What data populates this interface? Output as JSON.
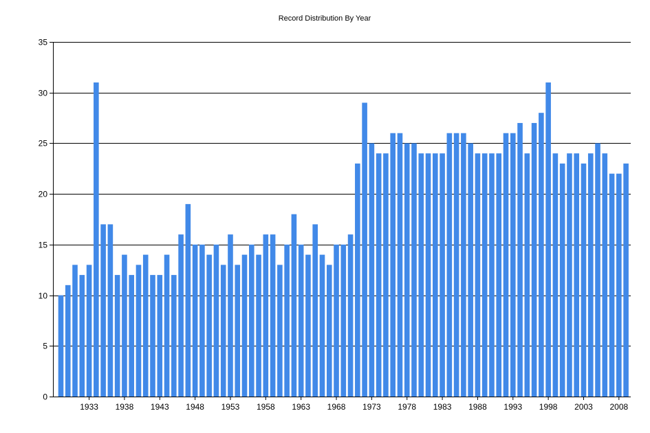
{
  "chart_data": {
    "type": "bar",
    "title": "Record Distribution By Year",
    "xlabel": "",
    "ylabel": "",
    "ylim": [
      0,
      35
    ],
    "yticks": [
      0,
      5,
      10,
      15,
      20,
      25,
      30,
      35
    ],
    "grid": true,
    "bar_color": "#4189e8",
    "categories": [
      1929,
      1930,
      1931,
      1932,
      1933,
      1934,
      1935,
      1936,
      1937,
      1938,
      1939,
      1940,
      1941,
      1942,
      1943,
      1944,
      1945,
      1946,
      1947,
      1948,
      1949,
      1950,
      1951,
      1952,
      1953,
      1954,
      1955,
      1956,
      1957,
      1958,
      1959,
      1960,
      1961,
      1962,
      1963,
      1964,
      1965,
      1966,
      1967,
      1968,
      1969,
      1970,
      1971,
      1972,
      1973,
      1974,
      1975,
      1976,
      1977,
      1978,
      1979,
      1980,
      1981,
      1982,
      1983,
      1984,
      1985,
      1986,
      1987,
      1988,
      1989,
      1990,
      1991,
      1992,
      1993,
      1994,
      1995,
      1996,
      1997,
      1998,
      1999,
      2000,
      2001,
      2002,
      2003,
      2004,
      2005,
      2006,
      2007,
      2008,
      2009
    ],
    "values": [
      10,
      11,
      13,
      12,
      13,
      31,
      17,
      17,
      12,
      14,
      12,
      13,
      14,
      12,
      12,
      14,
      12,
      16,
      19,
      15,
      15,
      14,
      15,
      13,
      16,
      13,
      14,
      15,
      14,
      16,
      16,
      13,
      15,
      18,
      15,
      14,
      17,
      14,
      13,
      15,
      15,
      16,
      23,
      29,
      25,
      24,
      24,
      26,
      26,
      25,
      25,
      24,
      24,
      24,
      24,
      26,
      26,
      26,
      25,
      24,
      24,
      24,
      24,
      26,
      26,
      27,
      24,
      27,
      28,
      31,
      24,
      23,
      24,
      24,
      23,
      24,
      25,
      24,
      22,
      22,
      23
    ],
    "xtick_labels": [
      "1933",
      "1938",
      "1943",
      "1948",
      "1953",
      "1958",
      "1963",
      "1968",
      "1973",
      "1978",
      "1983",
      "1988",
      "1993",
      "1998",
      "2003",
      "2008"
    ]
  }
}
